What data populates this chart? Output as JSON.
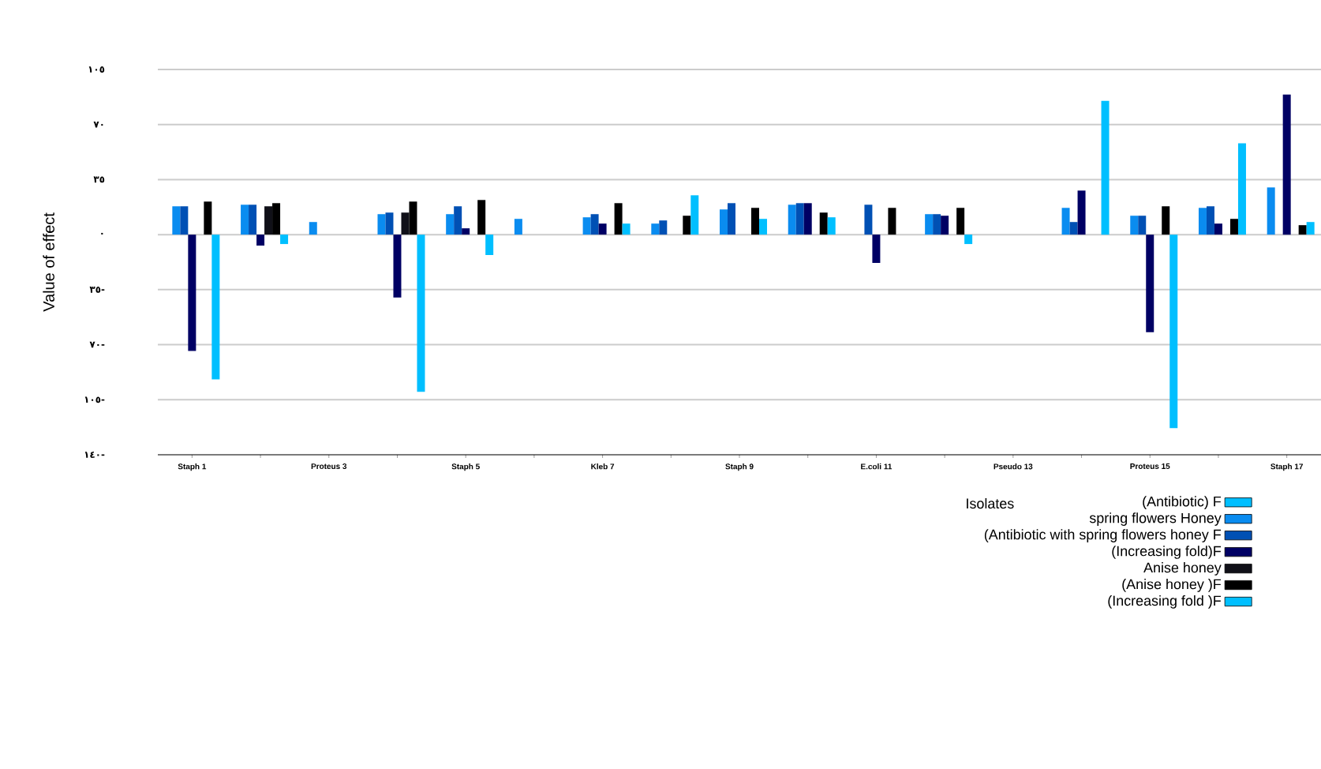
{
  "chart_data": {
    "type": "bar",
    "ylabel": "Value of effect",
    "legend_title": "Isolates",
    "categories": [
      "Staph 1",
      null,
      "Proteus 3",
      null,
      "Staph 5",
      null,
      "Kleb 7",
      null,
      "Staph 9",
      null,
      "E.coli 11",
      null,
      "Pseudo 13",
      null,
      "Proteus 15",
      null,
      "Staph 17"
    ],
    "series": [
      {
        "name": "(Antibiotic) F",
        "color": "#00bfff",
        "values": [
          0,
          0,
          0,
          0,
          0,
          0,
          0,
          0,
          0,
          0,
          0,
          0,
          0,
          0,
          0,
          0,
          0
        ]
      },
      {
        "name": "spring flowers Honey",
        "color": "#0a8cf0",
        "values": [
          18,
          19,
          8,
          13,
          13,
          10,
          11,
          7,
          16,
          19,
          0,
          13,
          0,
          17,
          12,
          17,
          30
        ]
      },
      {
        "name": "(Antibiotic with spring flowers honey F",
        "color": "#0050b4",
        "values": [
          18,
          19,
          0,
          14,
          18,
          0,
          13,
          9,
          20,
          20,
          19,
          13,
          0,
          8,
          12,
          18,
          0
        ]
      },
      {
        "name": "(Increasing fold)F",
        "color": "#000064",
        "values": [
          -74,
          -7,
          0,
          -40,
          4,
          0,
          7,
          0,
          0,
          20,
          -18,
          12,
          0,
          28,
          -62,
          7,
          89
        ]
      },
      {
        "name": "Anise honey",
        "color": "#101018",
        "values": [
          0,
          18,
          0,
          14,
          0,
          0,
          0,
          0,
          0,
          0,
          0,
          0,
          0,
          0,
          0,
          0,
          0
        ]
      },
      {
        "name": "(Anise honey )F",
        "color": "#000000",
        "values": [
          21,
          20,
          0,
          21,
          22,
          0,
          20,
          12,
          17,
          14,
          17,
          17,
          0,
          0,
          18,
          10,
          6
        ]
      },
      {
        "name": "(Increasing fold )F",
        "color": "#00bfff",
        "values": [
          -92,
          -6,
          0,
          -100,
          -13,
          0,
          7,
          25,
          10,
          11,
          0,
          -6,
          0,
          85,
          -123,
          58,
          8
        ]
      }
    ],
    "ylim": [
      -140,
      105
    ],
    "yticks": [
      {
        "value": -140,
        "label": "١٤٠-"
      },
      {
        "value": -105,
        "label": "١٠٥-"
      },
      {
        "value": -70,
        "label": "٧٠-"
      },
      {
        "value": -35,
        "label": "٣٥-"
      },
      {
        "value": 0,
        "label": "٠"
      },
      {
        "value": 35,
        "label": "٣٥"
      },
      {
        "value": 70,
        "label": "٧٠"
      },
      {
        "value": 105,
        "label": "١٠٥"
      }
    ],
    "grid": "y",
    "legend": "bottom right"
  }
}
